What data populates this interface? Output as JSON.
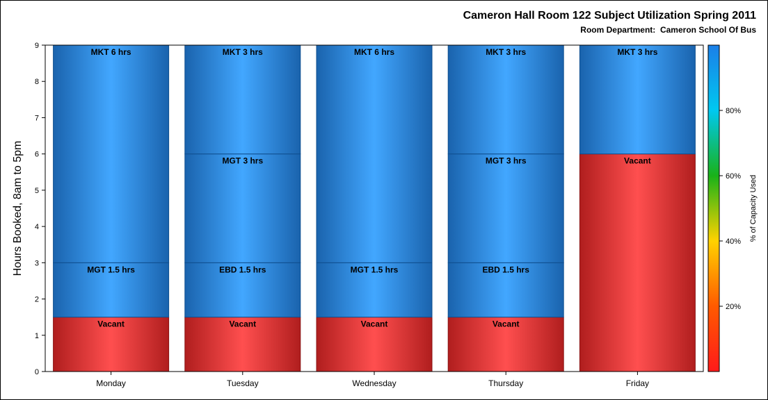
{
  "chart_data": {
    "type": "bar",
    "stacked": true,
    "title": "Cameron Hall Room 122 Subject Utilization Spring 2011",
    "subtitle": "Room Department:  Cameron School Of Bus",
    "ylabel": "Hours Booked, 8am to 5pm",
    "xlabel": "",
    "ylim": [
      0,
      9
    ],
    "yticks": [
      "0",
      "1",
      "2",
      "3",
      "4",
      "5",
      "6",
      "7",
      "8",
      "9"
    ],
    "categories": [
      "Monday",
      "Tuesday",
      "Wednesday",
      "Thursday",
      "Friday"
    ],
    "segments": [
      [
        {
          "label": "Vacant",
          "value": 1.5,
          "kind": "vacant"
        },
        {
          "label": "MGT 1.5 hrs",
          "value": 1.5,
          "kind": "booked"
        },
        {
          "label": "MKT 6 hrs",
          "value": 6,
          "kind": "booked"
        }
      ],
      [
        {
          "label": "Vacant",
          "value": 1.5,
          "kind": "vacant"
        },
        {
          "label": "EBD 1.5 hrs",
          "value": 1.5,
          "kind": "booked"
        },
        {
          "label": "MGT 3 hrs",
          "value": 3,
          "kind": "booked"
        },
        {
          "label": "MKT 3 hrs",
          "value": 3,
          "kind": "booked"
        }
      ],
      [
        {
          "label": "Vacant",
          "value": 1.5,
          "kind": "vacant"
        },
        {
          "label": "MGT 1.5 hrs",
          "value": 1.5,
          "kind": "booked"
        },
        {
          "label": "MKT 6 hrs",
          "value": 6,
          "kind": "booked"
        }
      ],
      [
        {
          "label": "Vacant",
          "value": 1.5,
          "kind": "vacant"
        },
        {
          "label": "EBD 1.5 hrs",
          "value": 1.5,
          "kind": "booked"
        },
        {
          "label": "MGT 3 hrs",
          "value": 3,
          "kind": "booked"
        },
        {
          "label": "MKT 3 hrs",
          "value": 3,
          "kind": "booked"
        }
      ],
      [
        {
          "label": "Vacant",
          "value": 6,
          "kind": "vacant"
        },
        {
          "label": "MKT 3 hrs",
          "value": 3,
          "kind": "booked"
        }
      ]
    ],
    "colorbar": {
      "label": "% of Capacity Used",
      "ticks": [
        "20%",
        "40%",
        "60%",
        "80%"
      ],
      "tick_values": [
        20,
        40,
        60,
        80
      ],
      "range": [
        0,
        100
      ]
    },
    "colors": {
      "booked_edge": "#1a63ad",
      "booked_center": "#42a7ff",
      "vacant_edge": "#b01e1e",
      "vacant_center": "#ff4f4f"
    },
    "grid": false,
    "legend": "colorbar-right"
  }
}
